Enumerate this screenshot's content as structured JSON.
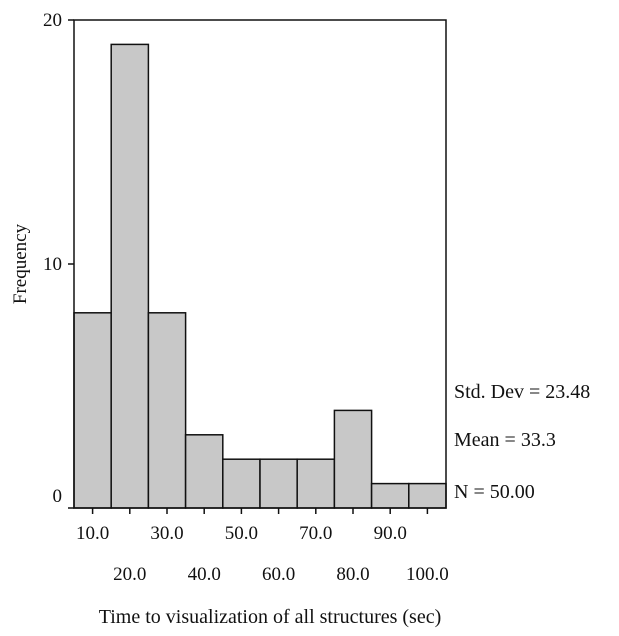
{
  "chart_data": {
    "type": "bar",
    "title": "",
    "xlabel": "Time to visualization of all structures (sec)",
    "ylabel": "Frequency",
    "categories": [
      "10.0",
      "20.0",
      "30.0",
      "40.0",
      "50.0",
      "60.0",
      "70.0",
      "80.0",
      "90.0",
      "100.0"
    ],
    "values": [
      8,
      19,
      8,
      3,
      2,
      2,
      2,
      4,
      1,
      1
    ],
    "ylim": [
      0,
      20
    ],
    "y_ticks": [
      "0",
      "10",
      "20"
    ],
    "grid": false,
    "legend": "none",
    "bar_color": "#c8c8c8",
    "edge_color": "#111111",
    "stats": {
      "std_dev": "Std. Dev = 23.48",
      "mean": "Mean = 33.3",
      "n": "N = 50.00"
    }
  }
}
